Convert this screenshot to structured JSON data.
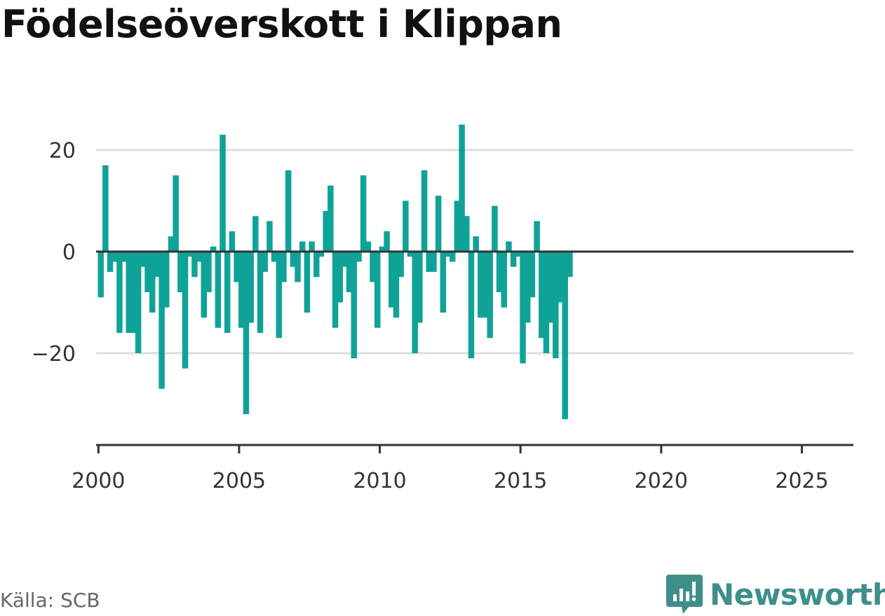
{
  "title": "Födelseöverskott i Klippan",
  "source": "Källa: SCB",
  "brand": "Newsworthy",
  "colors": {
    "bar": "#0fa398",
    "brand": "#3d8f8a",
    "grid": "#dddddd",
    "axis": "#333333"
  },
  "chart_data": {
    "type": "bar",
    "title": "Födelseöverskott i Klippan",
    "xlabel": "",
    "ylabel": "",
    "frequency": "monthly (every second month)",
    "x_start": "2000-02",
    "xlim": [
      "1999-12",
      "2026-11"
    ],
    "ylim": [
      -38,
      27
    ],
    "y_ticks": [
      -20,
      0,
      20
    ],
    "y_tick_labels": [
      "−20",
      "0",
      "20"
    ],
    "x_ticks": [
      2000,
      2005,
      2010,
      2015,
      2020,
      2025
    ],
    "x_tick_labels": [
      "2000",
      "2005",
      "2010",
      "2015",
      "2020",
      "2025"
    ],
    "grid": true,
    "values": [
      -9,
      17,
      -4,
      -2,
      -16,
      -2,
      -16,
      -16,
      -20,
      -3,
      -8,
      -12,
      -5,
      -27,
      -11,
      3,
      15,
      -8,
      -23,
      -1,
      -5,
      -2,
      -13,
      -8,
      1,
      -15,
      23,
      -16,
      4,
      -6,
      -15,
      -32,
      -14,
      7,
      -16,
      -4,
      6,
      -2,
      -17,
      -6,
      16,
      -3,
      -6,
      2,
      -12,
      2,
      -5,
      -1,
      8,
      13,
      -15,
      -10,
      -3,
      -8,
      -21,
      -2,
      15,
      2,
      -6,
      -15,
      1,
      4,
      -11,
      -13,
      -5,
      10,
      -1,
      -20,
      -14,
      16,
      -4,
      -4,
      11,
      -12,
      -1,
      -2,
      10,
      25,
      7,
      -21,
      3,
      -13,
      -13,
      -17,
      9,
      -8,
      -11,
      2,
      -3,
      -1,
      -22,
      -14,
      -9,
      6,
      -17,
      -20,
      -14,
      -21,
      -10,
      -33,
      -5
    ]
  }
}
